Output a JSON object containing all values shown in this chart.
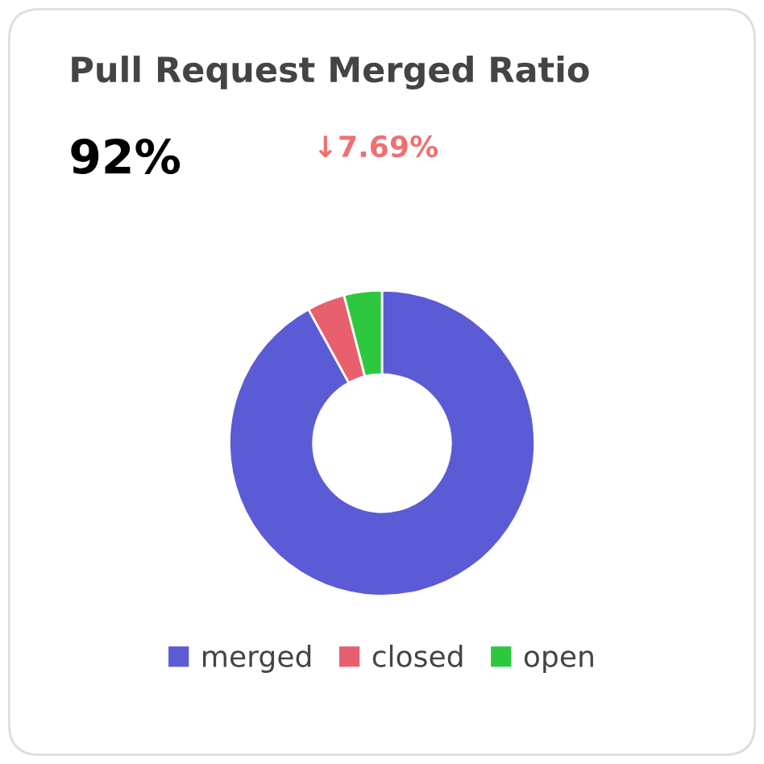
{
  "chart_data": {
    "type": "donut",
    "title": "Pull Request Merged Ratio",
    "annotations": [
      "92%",
      "↓7.69%"
    ],
    "categories": [
      "merged",
      "closed",
      "open"
    ],
    "values": [
      92,
      4,
      4
    ],
    "colors": [
      "#5b5bd6",
      "#e8606e",
      "#2ec840"
    ],
    "legend": "bottom"
  }
}
